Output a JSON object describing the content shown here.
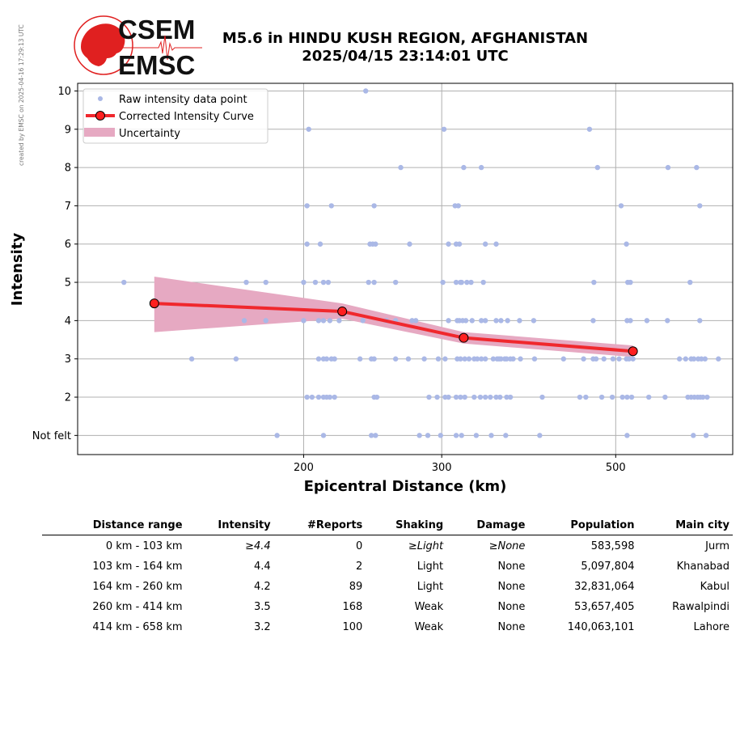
{
  "side_credit": "created by EMSC on 2025-04-16 17:29:13 UTC",
  "logo": {
    "top_text": "CSEM",
    "bottom_text": "EMSC",
    "red": "#e02020"
  },
  "title": {
    "line1": "M5.6 in HINDU KUSH REGION, AFGHANISTAN",
    "line2": "2025/04/15 23:14:01 UTC"
  },
  "colors": {
    "raw_points": "#aab8e6",
    "curve": "#f0282d",
    "marker_fill": "#ff2020",
    "uncertainty": "#e6a9c2",
    "grid": "#b0b0b0"
  },
  "chart_data": {
    "type": "scatter",
    "title": "M5.6 in HINDU KUSH REGION, AFGHANISTAN 2025/04/15 23:14:01 UTC",
    "xlabel": "Epicentral Distance (km)",
    "ylabel": "Intensity",
    "xscale": "log",
    "xlim": [
      103,
      705
    ],
    "ylim": [
      0.5,
      10.2
    ],
    "xticks": [
      200,
      300,
      500
    ],
    "yticks": [
      1,
      2,
      3,
      4,
      5,
      6,
      7,
      8,
      9,
      10
    ],
    "ytick_labels": [
      "Not felt",
      "2",
      "3",
      "4",
      "5",
      "6",
      "7",
      "8",
      "9",
      "10"
    ],
    "grid": true,
    "legend": {
      "position": "top-left",
      "entries": [
        "Raw intensity data point",
        "Corrected Intensity Curve",
        "Uncertainty"
      ]
    },
    "series": [
      {
        "name": "Raw intensity data point",
        "kind": "scatter",
        "points": [
          [
            240,
            10
          ],
          [
            203,
            9
          ],
          [
            302,
            9
          ],
          [
            463,
            9
          ],
          [
            266,
            8
          ],
          [
            320,
            8
          ],
          [
            337,
            8
          ],
          [
            474,
            8
          ],
          [
            583,
            8
          ],
          [
            634,
            8
          ],
          [
            202,
            7
          ],
          [
            217,
            7
          ],
          [
            246,
            7
          ],
          [
            312,
            7
          ],
          [
            315,
            7
          ],
          [
            508,
            7
          ],
          [
            640,
            7
          ],
          [
            202,
            6
          ],
          [
            210,
            6
          ],
          [
            243,
            6
          ],
          [
            245,
            6
          ],
          [
            247,
            6
          ],
          [
            273,
            6
          ],
          [
            306,
            6
          ],
          [
            313,
            6
          ],
          [
            316,
            6
          ],
          [
            341,
            6
          ],
          [
            352,
            6
          ],
          [
            516,
            6
          ],
          [
            118,
            5
          ],
          [
            169,
            5
          ],
          [
            179,
            5
          ],
          [
            200,
            5
          ],
          [
            207,
            5
          ],
          [
            212,
            5
          ],
          [
            215,
            5
          ],
          [
            242,
            5
          ],
          [
            246,
            5
          ],
          [
            262,
            5
          ],
          [
            301,
            5
          ],
          [
            313,
            5
          ],
          [
            317,
            5
          ],
          [
            318,
            5
          ],
          [
            323,
            5
          ],
          [
            327,
            5
          ],
          [
            339,
            5
          ],
          [
            469,
            5
          ],
          [
            518,
            5
          ],
          [
            522,
            5
          ],
          [
            622,
            5
          ],
          [
            168,
            4
          ],
          [
            179,
            4
          ],
          [
            200,
            4
          ],
          [
            209,
            4
          ],
          [
            212,
            4
          ],
          [
            216,
            4
          ],
          [
            222,
            4
          ],
          [
            238,
            4
          ],
          [
            255,
            4
          ],
          [
            262,
            4
          ],
          [
            275,
            4
          ],
          [
            278,
            4
          ],
          [
            306,
            4
          ],
          [
            314,
            4
          ],
          [
            316,
            4
          ],
          [
            319,
            4
          ],
          [
            322,
            4
          ],
          [
            328,
            4
          ],
          [
            337,
            4
          ],
          [
            341,
            4
          ],
          [
            352,
            4
          ],
          [
            357,
            4
          ],
          [
            364,
            4
          ],
          [
            377,
            4
          ],
          [
            393,
            4
          ],
          [
            468,
            4
          ],
          [
            517,
            4
          ],
          [
            522,
            4
          ],
          [
            548,
            4
          ],
          [
            582,
            4
          ],
          [
            640,
            4
          ],
          [
            144,
            3
          ],
          [
            164,
            3
          ],
          [
            209,
            3
          ],
          [
            212,
            3
          ],
          [
            214,
            3
          ],
          [
            217,
            3
          ],
          [
            219,
            3
          ],
          [
            236,
            3
          ],
          [
            244,
            3
          ],
          [
            246,
            3
          ],
          [
            262,
            3
          ],
          [
            272,
            3
          ],
          [
            285,
            3
          ],
          [
            297,
            3
          ],
          [
            303,
            3
          ],
          [
            314,
            3
          ],
          [
            317,
            3
          ],
          [
            321,
            3
          ],
          [
            325,
            3
          ],
          [
            330,
            3
          ],
          [
            333,
            3
          ],
          [
            337,
            3
          ],
          [
            341,
            3
          ],
          [
            349,
            3
          ],
          [
            353,
            3
          ],
          [
            355,
            3
          ],
          [
            357,
            3
          ],
          [
            361,
            3
          ],
          [
            363,
            3
          ],
          [
            367,
            3
          ],
          [
            370,
            3
          ],
          [
            378,
            3
          ],
          [
            394,
            3
          ],
          [
            429,
            3
          ],
          [
            455,
            3
          ],
          [
            468,
            3
          ],
          [
            472,
            3
          ],
          [
            483,
            3
          ],
          [
            496,
            3
          ],
          [
            505,
            3
          ],
          [
            516,
            3
          ],
          [
            520,
            3
          ],
          [
            526,
            3
          ],
          [
            603,
            3
          ],
          [
            614,
            3
          ],
          [
            624,
            3
          ],
          [
            629,
            3
          ],
          [
            637,
            3
          ],
          [
            643,
            3
          ],
          [
            650,
            3
          ],
          [
            676,
            3
          ],
          [
            202,
            2
          ],
          [
            205,
            2
          ],
          [
            209,
            2
          ],
          [
            212,
            2
          ],
          [
            214,
            2
          ],
          [
            216,
            2
          ],
          [
            219,
            2
          ],
          [
            246,
            2
          ],
          [
            248,
            2
          ],
          [
            289,
            2
          ],
          [
            296,
            2
          ],
          [
            303,
            2
          ],
          [
            306,
            2
          ],
          [
            313,
            2
          ],
          [
            317,
            2
          ],
          [
            321,
            2
          ],
          [
            330,
            2
          ],
          [
            336,
            2
          ],
          [
            341,
            2
          ],
          [
            346,
            2
          ],
          [
            352,
            2
          ],
          [
            356,
            2
          ],
          [
            363,
            2
          ],
          [
            367,
            2
          ],
          [
            403,
            2
          ],
          [
            450,
            2
          ],
          [
            458,
            2
          ],
          [
            480,
            2
          ],
          [
            495,
            2
          ],
          [
            510,
            2
          ],
          [
            517,
            2
          ],
          [
            524,
            2
          ],
          [
            551,
            2
          ],
          [
            578,
            2
          ],
          [
            618,
            2
          ],
          [
            624,
            2
          ],
          [
            630,
            2
          ],
          [
            636,
            2
          ],
          [
            641,
            2
          ],
          [
            646,
            2
          ],
          [
            654,
            2
          ],
          [
            185,
            1
          ],
          [
            212,
            1
          ],
          [
            244,
            1
          ],
          [
            247,
            1
          ],
          [
            281,
            1
          ],
          [
            288,
            1
          ],
          [
            299,
            1
          ],
          [
            313,
            1
          ],
          [
            318,
            1
          ],
          [
            332,
            1
          ],
          [
            347,
            1
          ],
          [
            362,
            1
          ],
          [
            400,
            1
          ],
          [
            517,
            1
          ],
          [
            628,
            1
          ],
          [
            652,
            1
          ]
        ]
      },
      {
        "name": "Corrected Intensity Curve",
        "kind": "line",
        "x": [
          129,
          224,
          320,
          526
        ],
        "y": [
          4.45,
          4.24,
          3.55,
          3.2
        ]
      },
      {
        "name": "Uncertainty",
        "kind": "band",
        "x": [
          129,
          224,
          320,
          526
        ],
        "upper": [
          5.15,
          4.45,
          3.7,
          3.35
        ],
        "lower": [
          3.7,
          4.05,
          3.4,
          3.05
        ]
      }
    ]
  },
  "table": {
    "headers": [
      "Distance range",
      "Intensity",
      "#Reports",
      "Shaking",
      "Damage",
      "Population",
      "Main city"
    ],
    "rows": [
      [
        "0 km -  103 km",
        "≥4.4",
        "0",
        "≥Light",
        "≥None",
        "583,598",
        "Jurm"
      ],
      [
        "103 km -  164 km",
        "4.4",
        "2",
        "Light",
        "None",
        "5,097,804",
        "Khanabad"
      ],
      [
        "164 km -  260 km",
        "4.2",
        "89",
        "Light",
        "None",
        "32,831,064",
        "Kabul"
      ],
      [
        "260 km -  414 km",
        "3.5",
        "168",
        "Weak",
        "None",
        "53,657,405",
        "Rawalpindi"
      ],
      [
        "414 km -  658 km",
        "3.2",
        "100",
        "Weak",
        "None",
        "140,063,101",
        "Lahore"
      ]
    ]
  }
}
